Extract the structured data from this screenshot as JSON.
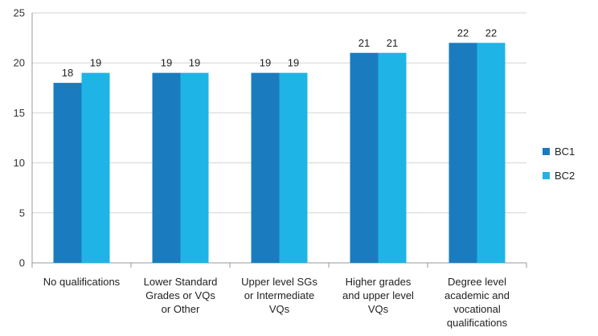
{
  "chart_data": {
    "type": "bar",
    "title": "",
    "xlabel": "",
    "ylabel": "",
    "ylim": [
      0,
      25
    ],
    "yticks": [
      0,
      5,
      10,
      15,
      20,
      25
    ],
    "grid": true,
    "legend_position": "right",
    "categories": [
      [
        "No qualifications"
      ],
      [
        "Lower Standard",
        "Grades or VQs",
        "or Other"
      ],
      [
        "Upper level SGs",
        "or Intermediate",
        "VQs"
      ],
      [
        "Higher grades",
        "and upper level",
        "VQs"
      ],
      [
        "Degree level",
        "academic and",
        "vocational",
        "qualifications"
      ]
    ],
    "series": [
      {
        "name": "BC1",
        "color": "#1a7cbf",
        "values": [
          18,
          19,
          19,
          21,
          22
        ]
      },
      {
        "name": "BC2",
        "color": "#1eb4e6",
        "values": [
          19,
          19,
          19,
          21,
          22
        ]
      }
    ]
  }
}
